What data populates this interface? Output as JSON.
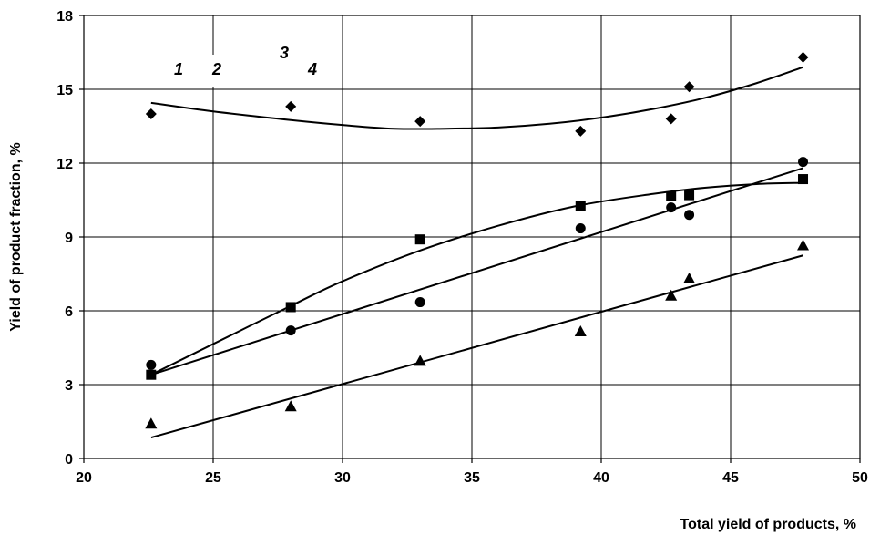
{
  "chart_data": {
    "type": "scatter",
    "xlabel": "Total yield of products, %",
    "ylabel": "Yield of product fraction, %",
    "xlim": [
      20,
      50
    ],
    "ylim": [
      0,
      18
    ],
    "x_ticks": [
      20,
      25,
      30,
      35,
      40,
      45,
      50
    ],
    "y_ticks": [
      0,
      3,
      6,
      9,
      12,
      15,
      18
    ],
    "grid": true,
    "x": [
      22.6,
      28.0,
      33.0,
      39.2,
      42.7,
      43.4,
      47.8
    ],
    "curve_labels": [
      "1",
      "2",
      "3",
      "4"
    ],
    "series": [
      {
        "marker": "diamond",
        "values": [
          14.0,
          14.3,
          13.7,
          13.3,
          13.8,
          15.1,
          16.3
        ],
        "trend": {
          "kind": "polynomial",
          "x": [
            22.6,
            25,
            28,
            30,
            32,
            34,
            36,
            38,
            40,
            42,
            44,
            46,
            47.8
          ],
          "y": [
            14.45,
            14.1,
            13.75,
            13.55,
            13.4,
            13.4,
            13.45,
            13.6,
            13.85,
            14.2,
            14.65,
            15.25,
            15.9
          ]
        }
      },
      {
        "marker": "circle",
        "values": [
          3.8,
          5.2,
          6.35,
          9.35,
          10.2,
          9.9,
          12.05
        ],
        "trend": {
          "kind": "linear",
          "x": [
            22.6,
            47.8
          ],
          "y": [
            3.4,
            11.8
          ]
        }
      },
      {
        "marker": "square",
        "values": [
          3.4,
          6.15,
          8.9,
          10.25,
          10.65,
          10.7,
          11.35
        ],
        "trend": {
          "kind": "polynomial",
          "x": [
            22.6,
            25,
            28,
            30,
            33,
            36,
            39,
            42,
            44,
            46,
            47.8
          ],
          "y": [
            3.4,
            4.65,
            6.2,
            7.2,
            8.45,
            9.45,
            10.25,
            10.75,
            11.0,
            11.15,
            11.2
          ]
        }
      },
      {
        "marker": "triangle",
        "values": [
          1.4,
          2.1,
          3.95,
          5.15,
          6.6,
          7.3,
          8.65
        ],
        "trend": {
          "kind": "linear",
          "x": [
            22.6,
            47.8
          ],
          "y": [
            0.85,
            8.25
          ]
        }
      }
    ]
  }
}
